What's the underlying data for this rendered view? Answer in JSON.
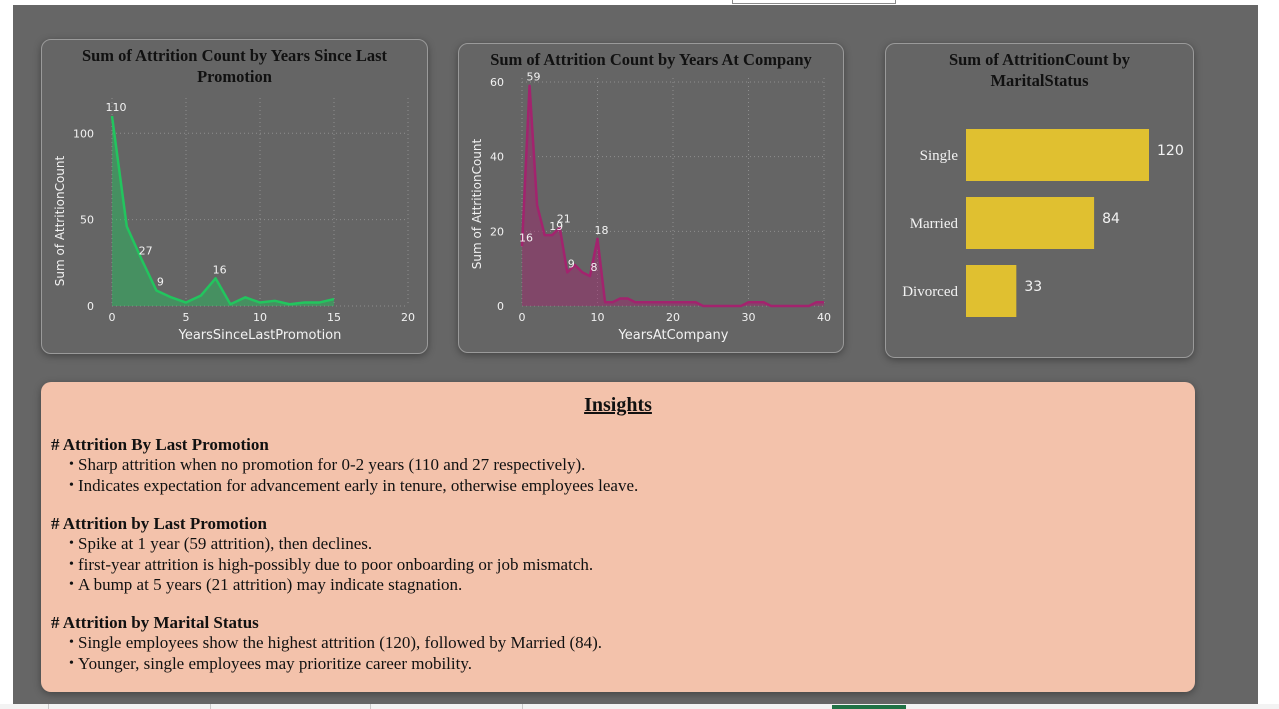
{
  "chart_data": [
    {
      "type": "area",
      "title": "Sum of Attrition Count by Years Since Last Promotion",
      "xlabel": "YearsSinceLastPromotion",
      "ylabel": "Sum of AttritionCount",
      "xlim": [
        0,
        20
      ],
      "ylim": [
        0,
        110
      ],
      "xticks": [
        0,
        5,
        10,
        15,
        20
      ],
      "yticks": [
        0,
        50,
        100
      ],
      "grid": true,
      "color": "#22c55e",
      "x": [
        0,
        1,
        2,
        3,
        4,
        5,
        6,
        7,
        8,
        9,
        10,
        11,
        12,
        13,
        14,
        15
      ],
      "y": [
        110,
        46,
        27,
        9,
        5,
        2,
        6,
        16,
        1,
        5,
        2,
        3,
        1,
        2,
        2,
        4
      ],
      "data_labels": [
        {
          "x": 0,
          "text": "110"
        },
        {
          "x": 2,
          "text": "27"
        },
        {
          "x": 3,
          "text": "9"
        },
        {
          "x": 7,
          "text": "16"
        }
      ]
    },
    {
      "type": "area",
      "title": "Sum of Attrition Count by Years At Company",
      "xlabel": "YearsAtCompany",
      "ylabel": "Sum of AttritionCount",
      "xlim": [
        0,
        40
      ],
      "ylim": [
        0,
        60
      ],
      "xticks": [
        0,
        10,
        20,
        30,
        40
      ],
      "yticks": [
        0,
        20,
        40,
        60
      ],
      "grid": true,
      "color": "#a3236e",
      "x": [
        0,
        1,
        2,
        3,
        4,
        5,
        6,
        7,
        8,
        9,
        10,
        11,
        12,
        13,
        14,
        15,
        16,
        17,
        18,
        19,
        20,
        21,
        22,
        23,
        24,
        25,
        26,
        27,
        28,
        29,
        30,
        31,
        32,
        33,
        34,
        35,
        36,
        37,
        38,
        39,
        40
      ],
      "y": [
        16,
        59,
        27,
        19,
        19,
        21,
        9,
        11,
        9,
        8,
        18,
        1,
        1,
        2,
        2,
        1,
        1,
        1,
        1,
        1,
        1,
        1,
        1,
        1,
        0,
        0,
        0,
        0,
        0,
        0,
        1,
        1,
        1,
        0,
        0,
        0,
        0,
        0,
        0,
        1,
        1
      ],
      "data_labels": [
        {
          "x": 0,
          "text": "16"
        },
        {
          "x": 1,
          "text": "59"
        },
        {
          "x": 4,
          "text": "19"
        },
        {
          "x": 5,
          "text": "21"
        },
        {
          "x": 6,
          "text": "9"
        },
        {
          "x": 9,
          "text": "8"
        },
        {
          "x": 10,
          "text": "18"
        }
      ]
    },
    {
      "type": "bar",
      "orientation": "horizontal",
      "title": "Sum of AttritionCount by MaritalStatus",
      "categories": [
        "Single",
        "Married",
        "Divorced"
      ],
      "values": [
        120,
        84,
        33
      ],
      "color": "#e0c030"
    }
  ],
  "insights": {
    "title": "Insights",
    "sections": [
      {
        "heading": "# Attrition By Last Promotion",
        "bullets": [
          "Sharp attrition when no promotion for 0-2 years (110 and 27 respectively).",
          "Indicates expectation for advancement early in tenure, otherwise employees leave."
        ]
      },
      {
        "heading": "# Attrition by Last Promotion",
        "bullets": [
          "Spike at 1 year (59 attrition), then declines.",
          "first-year attrition is high-possibly due to poor onboarding or job mismatch.",
          "A bump at 5 years (21 attrition) may indicate stagnation."
        ]
      },
      {
        "heading": "# Attrition by Marital Status",
        "bullets": [
          "Single employees show the highest attrition (120), followed by Married (84).",
          "Younger, single employees may prioritize career mobility."
        ]
      }
    ]
  }
}
